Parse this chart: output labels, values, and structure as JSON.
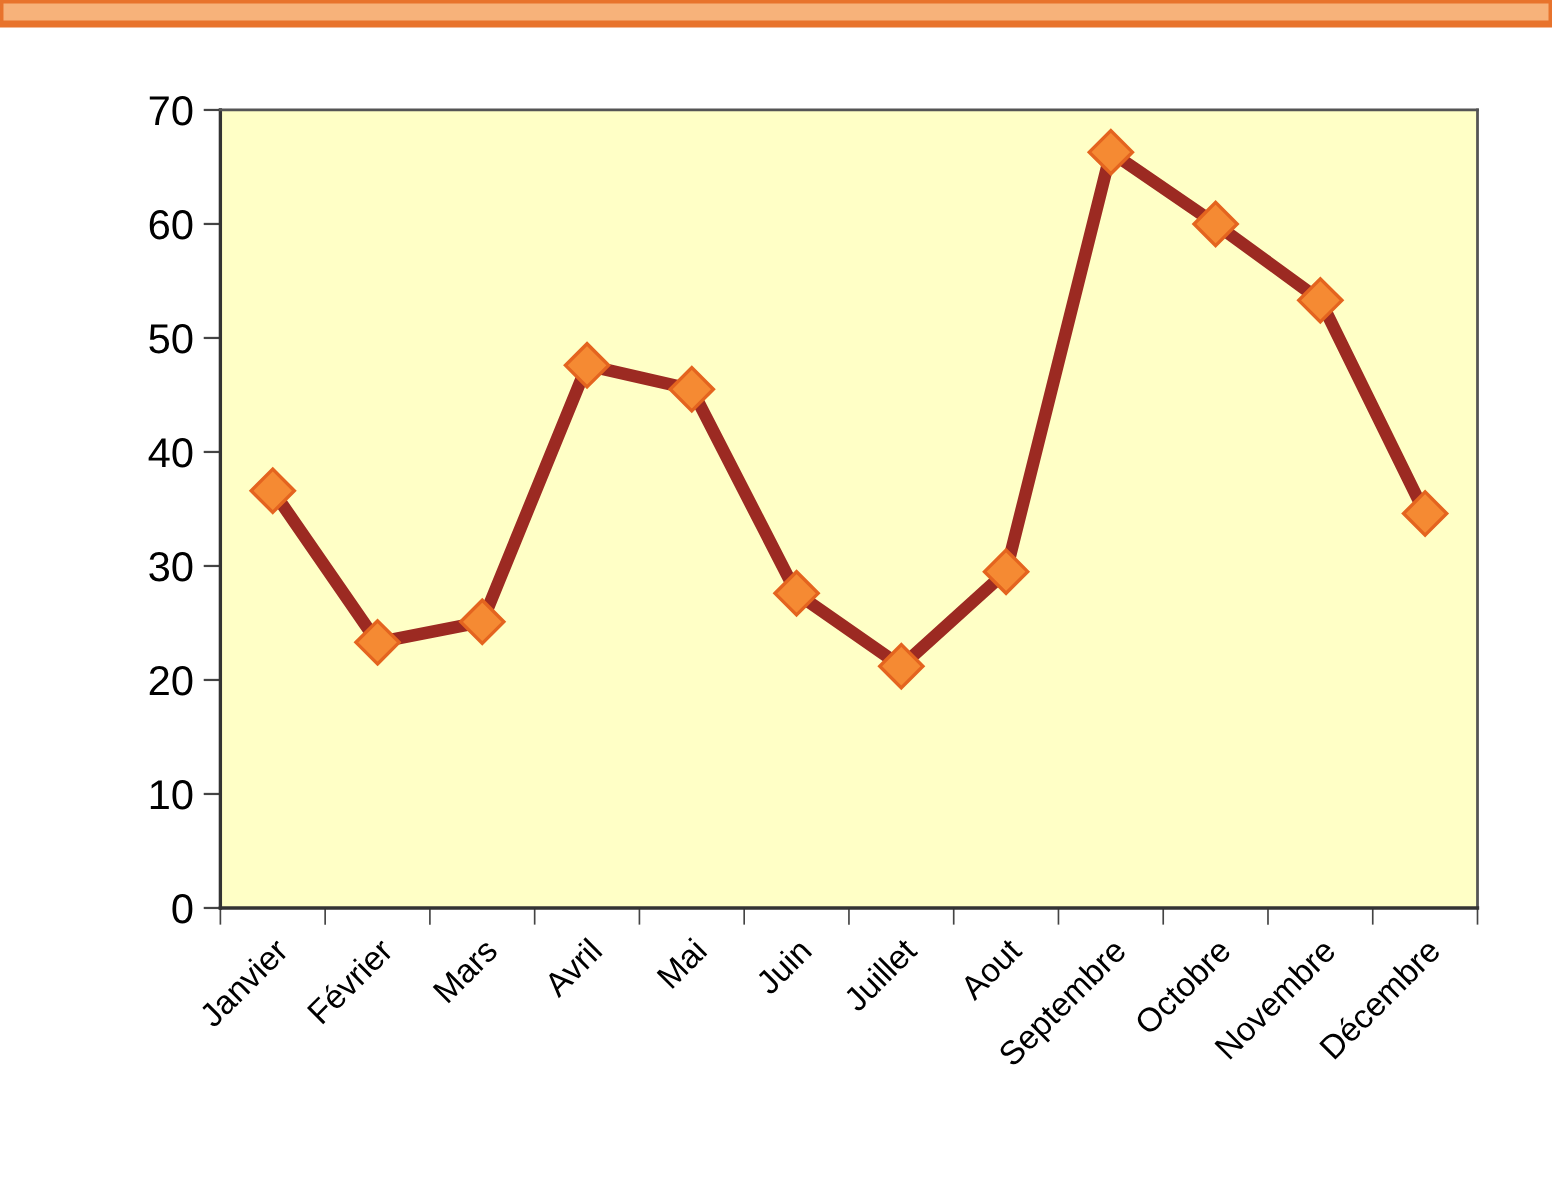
{
  "chart_data": {
    "type": "line",
    "categories": [
      "Janvier",
      "Février",
      "Mars",
      "Avril",
      "Mai",
      "Juin",
      "Juillet",
      "Aout",
      "Septembre",
      "Octobre",
      "Novembre",
      "Décembre"
    ],
    "series": [
      {
        "color": "#9c2a22",
        "values": [
          36.6,
          23.3,
          25.1,
          47.6,
          45.5,
          27.6,
          21.2,
          29.5,
          66.3,
          60.0,
          53.3,
          34.6
        ]
      }
    ],
    "ylim": [
      0,
      70
    ],
    "yticks": [
      0,
      10,
      20,
      30,
      40,
      50,
      60,
      70
    ],
    "marker": "diamond",
    "line_style": "solid"
  }
}
